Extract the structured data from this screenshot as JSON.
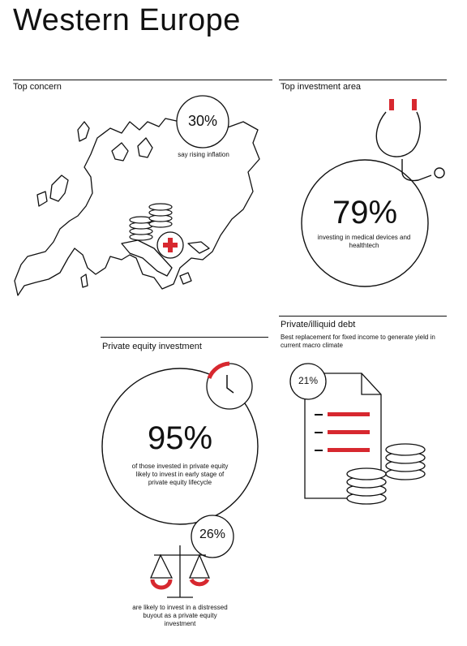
{
  "title": "Western Europe",
  "top_concern": {
    "label": "Top concern",
    "percent": "30%",
    "caption": "say rising inflation"
  },
  "top_investment": {
    "label": "Top investment area",
    "percent": "79%",
    "caption": "investing in medical devices and healthtech"
  },
  "private_debt": {
    "label": "Private/illiquid debt",
    "subtitle": "Best replacement for fixed income to generate yield in current macro climate",
    "percent": "21%"
  },
  "private_equity": {
    "label": "Private equity investment",
    "percent": "95%",
    "caption": "of those invested in private equity likely to invest in early stage of private equity lifecycle",
    "sub_percent": "26%",
    "sub_caption": "are likely to invest in a distressed buyout as a private equity investment"
  },
  "colors": {
    "accent": "#d7282f",
    "ink": "#111111"
  }
}
